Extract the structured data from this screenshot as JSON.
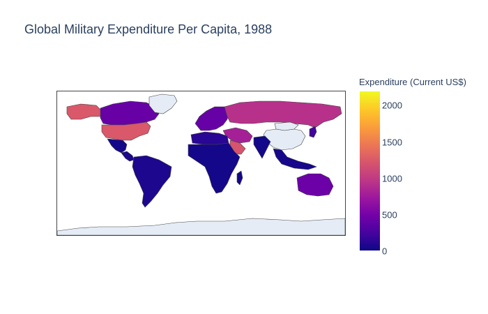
{
  "title": "Global Military Expenditure Per Capita, 1988",
  "colorbar": {
    "title": "Expenditure (Current US$)",
    "ticks": [
      "2000",
      "1500",
      "1000",
      "500",
      "0"
    ],
    "min": 0,
    "max": 2200,
    "colorscale": [
      "#0d0887",
      "#46039f",
      "#7201a8",
      "#9c179e",
      "#bd3786",
      "#d8576b",
      "#ed7953",
      "#fb9f3a",
      "#fdca26",
      "#f0f921"
    ]
  },
  "map": {
    "projection": "equirectangular",
    "no_data_color": "#e5ecf6",
    "regions": [
      {
        "name": "Canada",
        "value": 430
      },
      {
        "name": "United States",
        "value": 1230
      },
      {
        "name": "Alaska",
        "value": 1230
      },
      {
        "name": "Greenland",
        "value": null
      },
      {
        "name": "Mexico",
        "value": 30
      },
      {
        "name": "Central America",
        "value": 60
      },
      {
        "name": "South America",
        "value": 70
      },
      {
        "name": "Europe",
        "value": 420
      },
      {
        "name": "Soviet Union",
        "value": 930
      },
      {
        "name": "China",
        "value": null
      },
      {
        "name": "Mongolia",
        "value": null
      },
      {
        "name": "North Africa",
        "value": 120
      },
      {
        "name": "Sub-Saharan Africa",
        "value": 30
      },
      {
        "name": "Middle East",
        "value": 800
      },
      {
        "name": "Saudi Arabia",
        "value": 1200
      },
      {
        "name": "India",
        "value": 20
      },
      {
        "name": "Southeast Asia",
        "value": 40
      },
      {
        "name": "Japan",
        "value": 230
      },
      {
        "name": "Australia",
        "value": 450
      },
      {
        "name": "Antarctica",
        "value": null
      }
    ]
  }
}
